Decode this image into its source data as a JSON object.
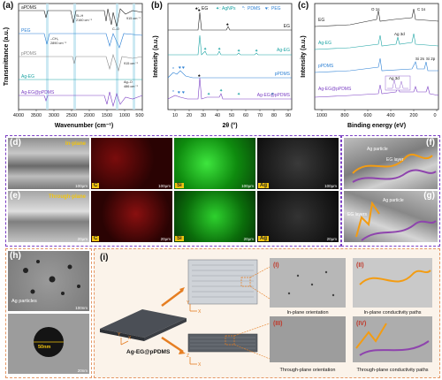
{
  "figure": {
    "panel_a": {
      "label": "(a)",
      "ylabel": "Transmittance (a.u.)",
      "xlabel": "Wavenumber (cm⁻¹)",
      "xticks": [
        "4000",
        "3500",
        "3000",
        "2500",
        "2000",
        "1500",
        "1000",
        "500"
      ],
      "traces": [
        "aPDMS",
        "PEG",
        "pPDMS",
        "Ag-EG",
        "Ag-EG@pPDMS"
      ],
      "annotations": [
        "Si–H",
        "2160 cm⁻¹",
        "–CH₂",
        "2890 cm⁻¹",
        "915 cm⁻¹",
        "915 cm⁻¹",
        "C–O",
        "Ag–O",
        "486 cm⁻¹"
      ]
    },
    "panel_b": {
      "label": "(b)",
      "ylabel": "Intensity (a.u.)",
      "xlabel": "2θ (°)",
      "xticks": [
        "10",
        "20",
        "30",
        "40",
        "50",
        "60",
        "70",
        "80",
        "90"
      ],
      "legend": [
        "EG",
        "AgNPs",
        "PDMS",
        "PEG"
      ],
      "traces": [
        "EG",
        "Ag-EG",
        "pPDMS",
        "Ag-EG@pPDMS"
      ]
    },
    "panel_c": {
      "label": "(c)",
      "ylabel": "Intensity (a.u.)",
      "xlabel": "Binding energy (eV)",
      "xticks": [
        "1000",
        "800",
        "600",
        "400",
        "200",
        "0"
      ],
      "traces": [
        "EG",
        "Ag-EG",
        "pPDMS",
        "Ag-EG@pPDMS"
      ],
      "peaks": [
        "O 1s",
        "C 1s",
        "Ag 3d",
        "Si 2s",
        "Si 2p",
        "Ag 3d"
      ]
    },
    "panel_d": {
      "label": "(d)",
      "title": "In-plane",
      "tags": [
        "C",
        "Si",
        "Ag"
      ],
      "scales": [
        "100μm",
        "100μm",
        "100μm",
        "100μm"
      ]
    },
    "panel_e": {
      "label": "(e)",
      "title": "Through-plane",
      "tags": [
        "C",
        "Si",
        "Ag"
      ],
      "scales": [
        "20μm",
        "20μm",
        "20μm",
        "20μm"
      ]
    },
    "panel_f": {
      "label": "(f)",
      "texts": [
        "Ag particle",
        "EG layer"
      ]
    },
    "panel_g": {
      "label": "(g)",
      "texts": [
        "Ag particle",
        "EG layers"
      ]
    },
    "panel_h": {
      "label": "(h)",
      "texts": [
        "Ag particles",
        "50nm"
      ],
      "scales": [
        "100nm",
        "20nm"
      ]
    },
    "panel_i": {
      "label": "(i)",
      "sample": "Ag-EG@pPDMS",
      "subpanels": [
        "(I)",
        "(II)",
        "(III)",
        "(IV)"
      ],
      "captions": [
        "In-plane orientation",
        "In-plane conductivity paths",
        "Through-plane orientation",
        "Through-plane conductivity paths"
      ]
    }
  }
}
